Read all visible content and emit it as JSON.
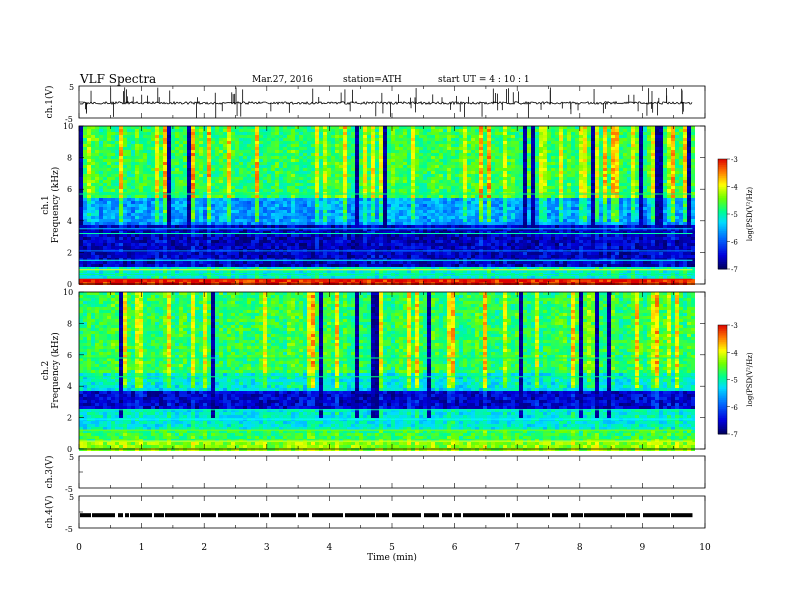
{
  "header": {
    "title": "VLF  Spectra",
    "date": "Mar.27, 2016",
    "station": "station=ATH",
    "start": "start  UT  =   4  : 10 : 1"
  },
  "chart_data": [
    {
      "type": "line",
      "panel": "ch1",
      "ylabel": "ch.1(V)",
      "ylim": [
        -5,
        5
      ],
      "yticks": [
        "5",
        "-5"
      ],
      "x_range_min": [
        0,
        9.8
      ],
      "baseline_v": -0.3,
      "noise_v": 0.4,
      "spikes": "frequent impulsive spikes up to +/-5 V"
    },
    {
      "type": "heatmap",
      "panel": "ch1-spectrogram",
      "ylabel": "ch.1 Frequency (kHz)",
      "ylim": [
        0,
        10
      ],
      "yticks": [
        "0",
        "2",
        "4",
        "6",
        "8",
        "10"
      ],
      "x_range_min": [
        0,
        9.8
      ],
      "colorbar": {
        "label": "log(PSD(V²/Hz)",
        "range": [
          -7,
          -3
        ],
        "ticks": [
          "-3",
          "-4",
          "-5",
          "-6",
          "-7"
        ]
      },
      "profile": "dark blue background below ~3.7 kHz, green/yellow above 5.6 kHz with red impulses; narrowband lines near 0.3, 0.8, 1.5, 3.2 kHz",
      "colors": [
        "#000080",
        "#0000ff",
        "#00c0ff",
        "#00ff80",
        "#ffff00",
        "#ff0000"
      ]
    },
    {
      "type": "heatmap",
      "panel": "ch2-spectrogram",
      "ylabel": "ch.2 Frequency (kHz)",
      "ylim": [
        0,
        10
      ],
      "yticks": [
        "0",
        "2",
        "4",
        "6",
        "8",
        "10"
      ],
      "x_range_min": [
        0,
        9.8
      ],
      "colorbar": {
        "label": "log(PSD(V²/Hz)",
        "range": [
          -7,
          -3
        ],
        "ticks": [
          "-3",
          "-4",
          "-5",
          "-6",
          "-7"
        ]
      },
      "profile": "blue band 2.8-3.8 kHz, cyan/green 0.8-2.6 kHz and above 4 kHz, yellow/red impulses above 6 kHz",
      "colors": [
        "#000080",
        "#0000ff",
        "#00c0ff",
        "#00ff80",
        "#ffff00",
        "#ff0000"
      ]
    },
    {
      "type": "line",
      "panel": "ch3",
      "ylabel": "ch.3(V)",
      "ylim": [
        -5,
        5
      ],
      "yticks": [
        "5",
        "-5"
      ],
      "x_range_min": [
        0,
        9.8
      ],
      "note": "no signal"
    },
    {
      "type": "line",
      "panel": "ch4",
      "ylabel": "ch.4(V)",
      "ylim": [
        -5,
        5
      ],
      "yticks": [
        "5",
        "-5"
      ],
      "x_range_min": [
        0,
        9.8
      ],
      "baseline_v": -1.0,
      "pattern": "dashed square-wave segments near -1 V"
    }
  ],
  "xaxis": {
    "label": "Time  (min)",
    "range": [
      0,
      10
    ],
    "ticks": [
      "0",
      "1",
      "2",
      "3",
      "4",
      "5",
      "6",
      "7",
      "8",
      "9",
      "10"
    ]
  }
}
